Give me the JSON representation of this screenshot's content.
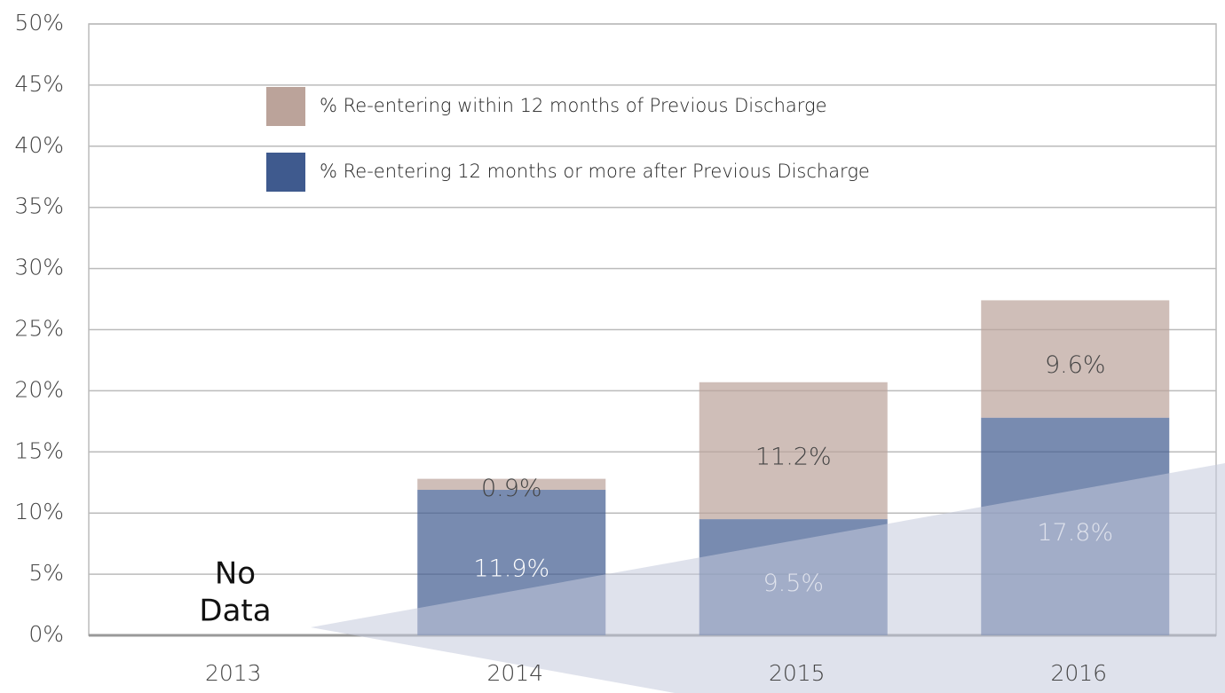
{
  "chart_data": {
    "type": "stacked_bar",
    "categories": [
      "2013",
      "2014",
      "2015",
      "2016"
    ],
    "series": [
      {
        "name": "% Re-entering 12 months or more after Previous Discharge",
        "color": "#3f5a8e",
        "values": [
          null,
          11.9,
          9.5,
          17.8
        ],
        "value_labels": [
          null,
          "11.9%",
          "9.5%",
          "17.8%"
        ]
      },
      {
        "name": "% Re-entering within 12 months of Previous Discharge",
        "color": "#bba39a",
        "values": [
          null,
          0.9,
          11.2,
          9.6
        ],
        "value_labels": [
          null,
          "0.9%",
          "11.2%",
          "9.6%"
        ]
      }
    ],
    "annotation": [
      "No",
      "Data"
    ],
    "ylim": [
      0,
      50
    ],
    "yticks": [
      {
        "value": 0,
        "label": "0%"
      },
      {
        "value": 5,
        "label": "5%"
      },
      {
        "value": 10,
        "label": "10%"
      },
      {
        "value": 15,
        "label": "15%"
      },
      {
        "value": 20,
        "label": "20%"
      },
      {
        "value": 25,
        "label": "25%"
      },
      {
        "value": 30,
        "label": "30%"
      },
      {
        "value": 35,
        "label": "35%"
      },
      {
        "value": 40,
        "label": "40%"
      },
      {
        "value": 45,
        "label": "45%"
      },
      {
        "value": 50,
        "label": "50%"
      }
    ],
    "grid": true
  }
}
